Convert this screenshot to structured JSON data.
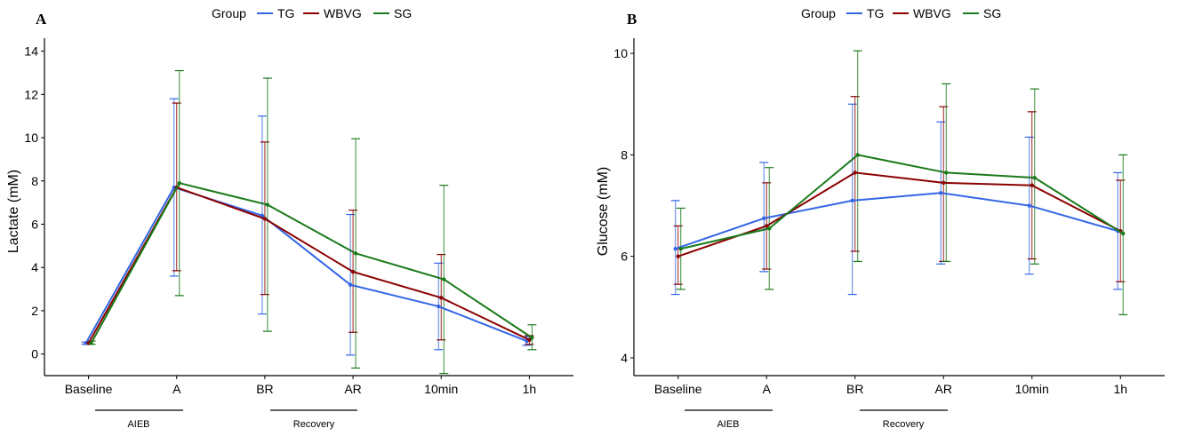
{
  "chart_data": [
    {
      "type": "line",
      "panel_label": "A",
      "title": "",
      "xlabel": "",
      "ylabel": "Lactate (mM)",
      "ylim": [
        -1,
        14.6
      ],
      "yticks": [
        0,
        2,
        4,
        6,
        8,
        10,
        12,
        14
      ],
      "categories": [
        "Baseline",
        "A",
        "BR",
        "AR",
        "10min",
        "1h"
      ],
      "legend": {
        "title": "Group",
        "position": "top"
      },
      "series": [
        {
          "name": "TG",
          "color": "#3366e6",
          "values": [
            0.5,
            7.7,
            6.4,
            3.2,
            2.2,
            0.6
          ],
          "lower": [
            0.45,
            3.6,
            1.85,
            -0.05,
            0.2,
            0.4
          ],
          "upper": [
            0.55,
            11.8,
            11.0,
            6.45,
            4.2,
            0.8
          ]
        },
        {
          "name": "WBVG",
          "color": "#8b0000",
          "values": [
            0.5,
            7.7,
            6.25,
            3.8,
            2.6,
            0.65
          ],
          "lower": [
            0.45,
            3.85,
            2.75,
            1.0,
            0.65,
            0.45
          ],
          "upper": [
            0.55,
            11.6,
            9.8,
            6.65,
            4.6,
            0.85
          ]
        },
        {
          "name": "SG",
          "color": "#1a7a1a",
          "values": [
            0.5,
            7.9,
            6.9,
            4.65,
            3.45,
            0.75
          ],
          "lower": [
            0.45,
            2.7,
            1.05,
            -0.65,
            -0.9,
            0.2
          ],
          "upper": [
            0.6,
            13.1,
            12.75,
            9.95,
            7.8,
            1.35
          ]
        }
      ],
      "brackets": [
        {
          "label": "AIEB",
          "from": "Baseline",
          "to": "A"
        },
        {
          "label": "Recovery",
          "from": "BR",
          "to": "AR"
        }
      ]
    },
    {
      "type": "line",
      "panel_label": "B",
      "title": "",
      "xlabel": "",
      "ylabel": "Glucose (mM)",
      "ylim": [
        3.65,
        10.3
      ],
      "yticks": [
        4,
        6,
        8,
        10
      ],
      "categories": [
        "Baseline",
        "A",
        "BR",
        "AR",
        "10min",
        "1h"
      ],
      "legend": {
        "title": "Group",
        "position": "top"
      },
      "series": [
        {
          "name": "TG",
          "color": "#3366e6",
          "values": [
            6.15,
            6.75,
            7.1,
            7.25,
            7.0,
            6.5
          ],
          "lower": [
            5.25,
            5.7,
            5.25,
            5.85,
            5.65,
            5.35
          ],
          "upper": [
            7.1,
            7.85,
            9.0,
            8.65,
            8.35,
            7.65
          ]
        },
        {
          "name": "WBVG",
          "color": "#8b0000",
          "values": [
            6.0,
            6.6,
            7.65,
            7.45,
            7.4,
            6.5
          ],
          "lower": [
            5.45,
            5.75,
            6.1,
            5.9,
            5.95,
            5.5
          ],
          "upper": [
            6.6,
            7.45,
            9.15,
            8.95,
            8.85,
            7.5
          ]
        },
        {
          "name": "SG",
          "color": "#1a7a1a",
          "values": [
            6.15,
            6.55,
            8.0,
            7.65,
            7.55,
            6.45
          ],
          "lower": [
            5.35,
            5.35,
            5.9,
            5.9,
            5.85,
            4.85
          ],
          "upper": [
            6.95,
            7.75,
            10.05,
            9.4,
            9.3,
            8.0
          ]
        }
      ],
      "brackets": [
        {
          "label": "AIEB",
          "from": "Baseline",
          "to": "A"
        },
        {
          "label": "Recovery",
          "from": "BR",
          "to": "AR"
        }
      ]
    }
  ]
}
